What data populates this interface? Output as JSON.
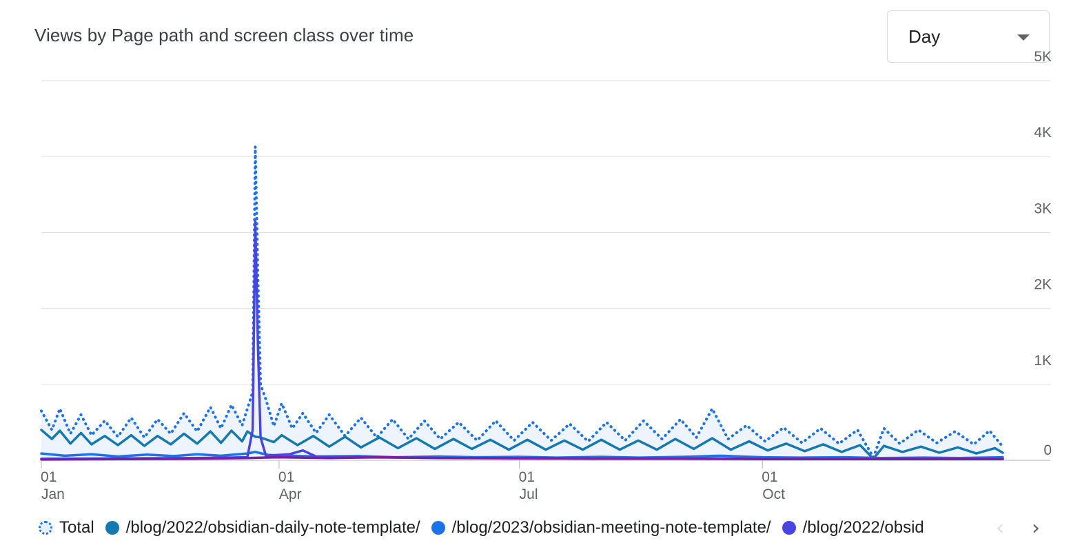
{
  "title": "Views by Page path and screen class over time",
  "period_select": {
    "value": "Day"
  },
  "legend": [
    {
      "label": "Total",
      "color": "#1a73e8",
      "style": "dotted"
    },
    {
      "label": "/blog/2022/obsidian-daily-note-template/",
      "color": "#1379b1"
    },
    {
      "label": "/blog/2023/obsidian-meeting-note-template/",
      "color": "#1a73e8"
    },
    {
      "label": "/blog/2022/obsid",
      "color": "#4a45e0"
    }
  ],
  "nav": {
    "prev": "‹",
    "next": "›"
  },
  "chart_data": {
    "type": "line",
    "x_range": [
      "2023-01-01",
      "2023-12-31"
    ],
    "ylim": [
      0,
      5000
    ],
    "y_ticks": [
      {
        "value": 0,
        "label": "0"
      },
      {
        "value": 1000,
        "label": "1K"
      },
      {
        "value": 2000,
        "label": "2K"
      },
      {
        "value": 3000,
        "label": "3K"
      },
      {
        "value": 4000,
        "label": "4K"
      },
      {
        "value": 5000,
        "label": "5K"
      }
    ],
    "x_ticks": [
      {
        "date": "2023-01-01",
        "day": "01",
        "month": "Jan"
      },
      {
        "date": "2023-04-01",
        "day": "01",
        "month": "Apr"
      },
      {
        "date": "2023-07-01",
        "day": "01",
        "month": "Jul"
      },
      {
        "date": "2023-10-01",
        "day": "01",
        "month": "Oct"
      }
    ],
    "grid": true,
    "legend_position": "bottom",
    "series": [
      {
        "name": "Total",
        "color": "#1a73e8",
        "style": "dotted",
        "fill": "#e8f0fe",
        "points": [
          [
            "2023-01-01",
            650
          ],
          [
            "2023-01-05",
            400
          ],
          [
            "2023-01-08",
            680
          ],
          [
            "2023-01-12",
            350
          ],
          [
            "2023-01-16",
            600
          ],
          [
            "2023-01-20",
            330
          ],
          [
            "2023-01-25",
            520
          ],
          [
            "2023-01-30",
            310
          ],
          [
            "2023-02-04",
            560
          ],
          [
            "2023-02-09",
            300
          ],
          [
            "2023-02-14",
            540
          ],
          [
            "2023-02-19",
            350
          ],
          [
            "2023-02-24",
            620
          ],
          [
            "2023-03-01",
            380
          ],
          [
            "2023-03-06",
            700
          ],
          [
            "2023-03-10",
            420
          ],
          [
            "2023-03-14",
            730
          ],
          [
            "2023-03-18",
            460
          ],
          [
            "2023-03-20",
            680
          ],
          [
            "2023-03-22",
            900
          ],
          [
            "2023-03-23",
            4130
          ],
          [
            "2023-03-24",
            2400
          ],
          [
            "2023-03-25",
            1000
          ],
          [
            "2023-03-27",
            800
          ],
          [
            "2023-03-30",
            450
          ],
          [
            "2023-04-02",
            750
          ],
          [
            "2023-04-06",
            420
          ],
          [
            "2023-04-10",
            620
          ],
          [
            "2023-04-15",
            360
          ],
          [
            "2023-04-20",
            600
          ],
          [
            "2023-04-26",
            320
          ],
          [
            "2023-05-02",
            560
          ],
          [
            "2023-05-08",
            300
          ],
          [
            "2023-05-14",
            540
          ],
          [
            "2023-05-20",
            280
          ],
          [
            "2023-05-26",
            520
          ],
          [
            "2023-06-01",
            280
          ],
          [
            "2023-06-08",
            500
          ],
          [
            "2023-06-15",
            260
          ],
          [
            "2023-06-22",
            520
          ],
          [
            "2023-06-29",
            260
          ],
          [
            "2023-07-06",
            500
          ],
          [
            "2023-07-13",
            260
          ],
          [
            "2023-07-20",
            480
          ],
          [
            "2023-07-27",
            250
          ],
          [
            "2023-08-03",
            500
          ],
          [
            "2023-08-10",
            260
          ],
          [
            "2023-08-17",
            520
          ],
          [
            "2023-08-24",
            280
          ],
          [
            "2023-08-31",
            540
          ],
          [
            "2023-09-06",
            300
          ],
          [
            "2023-09-12",
            680
          ],
          [
            "2023-09-18",
            280
          ],
          [
            "2023-09-25",
            460
          ],
          [
            "2023-10-02",
            250
          ],
          [
            "2023-10-09",
            430
          ],
          [
            "2023-10-16",
            230
          ],
          [
            "2023-10-23",
            420
          ],
          [
            "2023-10-30",
            220
          ],
          [
            "2023-11-06",
            400
          ],
          [
            "2023-11-12",
            40
          ],
          [
            "2023-11-16",
            420
          ],
          [
            "2023-11-22",
            220
          ],
          [
            "2023-11-29",
            400
          ],
          [
            "2023-12-06",
            230
          ],
          [
            "2023-12-13",
            380
          ],
          [
            "2023-12-20",
            210
          ],
          [
            "2023-12-26",
            390
          ],
          [
            "2023-12-31",
            180
          ]
        ]
      },
      {
        "name": "/blog/2022/obsidian-daily-note-template/",
        "color": "#1379b1",
        "style": "solid",
        "points": [
          [
            "2023-01-01",
            400
          ],
          [
            "2023-01-05",
            280
          ],
          [
            "2023-01-08",
            390
          ],
          [
            "2023-01-12",
            220
          ],
          [
            "2023-01-16",
            360
          ],
          [
            "2023-01-20",
            210
          ],
          [
            "2023-01-25",
            320
          ],
          [
            "2023-01-30",
            200
          ],
          [
            "2023-02-04",
            330
          ],
          [
            "2023-02-09",
            190
          ],
          [
            "2023-02-14",
            320
          ],
          [
            "2023-02-19",
            210
          ],
          [
            "2023-02-24",
            350
          ],
          [
            "2023-03-01",
            220
          ],
          [
            "2023-03-06",
            380
          ],
          [
            "2023-03-10",
            230
          ],
          [
            "2023-03-14",
            390
          ],
          [
            "2023-03-18",
            250
          ],
          [
            "2023-03-20",
            380
          ],
          [
            "2023-03-22",
            330
          ],
          [
            "2023-03-23",
            310
          ],
          [
            "2023-03-25",
            300
          ],
          [
            "2023-03-30",
            240
          ],
          [
            "2023-04-02",
            330
          ],
          [
            "2023-04-08",
            200
          ],
          [
            "2023-04-14",
            320
          ],
          [
            "2023-04-20",
            180
          ],
          [
            "2023-04-26",
            310
          ],
          [
            "2023-05-02",
            170
          ],
          [
            "2023-05-09",
            300
          ],
          [
            "2023-05-16",
            160
          ],
          [
            "2023-05-23",
            290
          ],
          [
            "2023-05-30",
            150
          ],
          [
            "2023-06-06",
            280
          ],
          [
            "2023-06-13",
            150
          ],
          [
            "2023-06-20",
            270
          ],
          [
            "2023-06-27",
            140
          ],
          [
            "2023-07-04",
            270
          ],
          [
            "2023-07-11",
            140
          ],
          [
            "2023-07-18",
            260
          ],
          [
            "2023-07-25",
            140
          ],
          [
            "2023-08-01",
            270
          ],
          [
            "2023-08-08",
            140
          ],
          [
            "2023-08-15",
            260
          ],
          [
            "2023-08-22",
            140
          ],
          [
            "2023-08-29",
            280
          ],
          [
            "2023-09-05",
            150
          ],
          [
            "2023-09-12",
            290
          ],
          [
            "2023-09-19",
            140
          ],
          [
            "2023-09-26",
            250
          ],
          [
            "2023-10-03",
            130
          ],
          [
            "2023-10-10",
            220
          ],
          [
            "2023-10-17",
            120
          ],
          [
            "2023-10-24",
            210
          ],
          [
            "2023-10-31",
            110
          ],
          [
            "2023-11-07",
            200
          ],
          [
            "2023-11-12",
            20
          ],
          [
            "2023-11-16",
            190
          ],
          [
            "2023-11-23",
            110
          ],
          [
            "2023-11-30",
            180
          ],
          [
            "2023-12-07",
            100
          ],
          [
            "2023-12-14",
            170
          ],
          [
            "2023-12-21",
            90
          ],
          [
            "2023-12-28",
            160
          ],
          [
            "2023-12-31",
            100
          ]
        ]
      },
      {
        "name": "/blog/2023/obsidian-meeting-note-template/",
        "color": "#1a73e8",
        "style": "solid",
        "points": [
          [
            "2023-01-01",
            90
          ],
          [
            "2023-01-10",
            60
          ],
          [
            "2023-01-20",
            80
          ],
          [
            "2023-01-30",
            50
          ],
          [
            "2023-02-10",
            75
          ],
          [
            "2023-02-20",
            55
          ],
          [
            "2023-03-01",
            80
          ],
          [
            "2023-03-10",
            60
          ],
          [
            "2023-03-20",
            90
          ],
          [
            "2023-03-23",
            110
          ],
          [
            "2023-03-28",
            70
          ],
          [
            "2023-04-05",
            60
          ],
          [
            "2023-04-15",
            50
          ],
          [
            "2023-05-01",
            55
          ],
          [
            "2023-05-15",
            40
          ],
          [
            "2023-06-01",
            50
          ],
          [
            "2023-06-15",
            40
          ],
          [
            "2023-07-01",
            45
          ],
          [
            "2023-07-15",
            35
          ],
          [
            "2023-08-01",
            45
          ],
          [
            "2023-08-15",
            35
          ],
          [
            "2023-09-01",
            45
          ],
          [
            "2023-09-15",
            60
          ],
          [
            "2023-10-01",
            40
          ],
          [
            "2023-10-15",
            35
          ],
          [
            "2023-11-01",
            40
          ],
          [
            "2023-11-15",
            30
          ],
          [
            "2023-12-01",
            35
          ],
          [
            "2023-12-15",
            30
          ],
          [
            "2023-12-31",
            40
          ]
        ]
      },
      {
        "name": "/blog/2022/obsid",
        "color": "#4a45e0",
        "style": "solid",
        "points": [
          [
            "2023-01-01",
            20
          ],
          [
            "2023-02-01",
            25
          ],
          [
            "2023-03-01",
            30
          ],
          [
            "2023-03-20",
            40
          ],
          [
            "2023-03-22",
            400
          ],
          [
            "2023-03-23",
            3150
          ],
          [
            "2023-03-24",
            1500
          ],
          [
            "2023-03-25",
            300
          ],
          [
            "2023-03-27",
            60
          ],
          [
            "2023-04-05",
            80
          ],
          [
            "2023-04-10",
            130
          ],
          [
            "2023-04-15",
            50
          ],
          [
            "2023-05-01",
            40
          ],
          [
            "2023-06-01",
            30
          ],
          [
            "2023-07-01",
            30
          ],
          [
            "2023-08-01",
            25
          ],
          [
            "2023-09-01",
            25
          ],
          [
            "2023-10-01",
            20
          ],
          [
            "2023-11-01",
            20
          ],
          [
            "2023-12-01",
            20
          ],
          [
            "2023-12-31",
            20
          ]
        ]
      },
      {
        "name": "",
        "color": "#7b1fa2",
        "style": "solid",
        "points": [
          [
            "2023-01-01",
            10
          ],
          [
            "2023-02-01",
            15
          ],
          [
            "2023-03-01",
            20
          ],
          [
            "2023-03-20",
            30
          ],
          [
            "2023-04-01",
            40
          ],
          [
            "2023-04-20",
            30
          ],
          [
            "2023-05-10",
            40
          ],
          [
            "2023-06-01",
            30
          ],
          [
            "2023-07-01",
            25
          ],
          [
            "2023-08-01",
            20
          ],
          [
            "2023-09-01",
            20
          ],
          [
            "2023-10-01",
            15
          ],
          [
            "2023-11-01",
            15
          ],
          [
            "2023-12-01",
            15
          ],
          [
            "2023-12-31",
            15
          ]
        ]
      }
    ]
  }
}
